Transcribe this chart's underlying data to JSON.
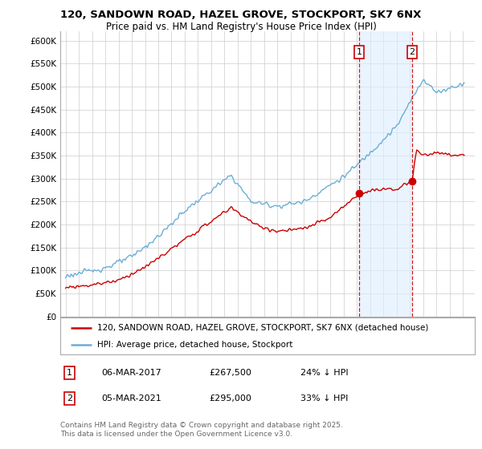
{
  "title1": "120, SANDOWN ROAD, HAZEL GROVE, STOCKPORT, SK7 6NX",
  "title2": "Price paid vs. HM Land Registry's House Price Index (HPI)",
  "background_color": "#ffffff",
  "grid_color": "#cccccc",
  "hpi_color": "#6baed6",
  "price_color": "#cc0000",
  "marker_color": "#cc0000",
  "dashed_line_color": "#cc0000",
  "shade_color": "#ddeeff",
  "ylim": [
    0,
    620000
  ],
  "yticks": [
    0,
    50000,
    100000,
    150000,
    200000,
    250000,
    300000,
    350000,
    400000,
    450000,
    500000,
    550000,
    600000
  ],
  "ytick_labels": [
    "£0",
    "£50K",
    "£100K",
    "£150K",
    "£200K",
    "£250K",
    "£300K",
    "£350K",
    "£400K",
    "£450K",
    "£500K",
    "£550K",
    "£600K"
  ],
  "transactions": [
    {
      "date": "06-MAR-2017",
      "price": 267500,
      "label": "1",
      "year": 2017.17
    },
    {
      "date": "05-MAR-2021",
      "price": 295000,
      "label": "2",
      "year": 2021.17
    }
  ],
  "legend_entries": [
    "120, SANDOWN ROAD, HAZEL GROVE, STOCKPORT, SK7 6NX (detached house)",
    "HPI: Average price, detached house, Stockport"
  ],
  "footnote": "Contains HM Land Registry data © Crown copyright and database right 2025.\nThis data is licensed under the Open Government Licence v3.0.",
  "table_rows": [
    {
      "num": "1",
      "date": "06-MAR-2017",
      "price": "£267,500",
      "pct": "24% ↓ HPI"
    },
    {
      "num": "2",
      "date": "05-MAR-2021",
      "price": "£295,000",
      "pct": "33% ↓ HPI"
    }
  ]
}
